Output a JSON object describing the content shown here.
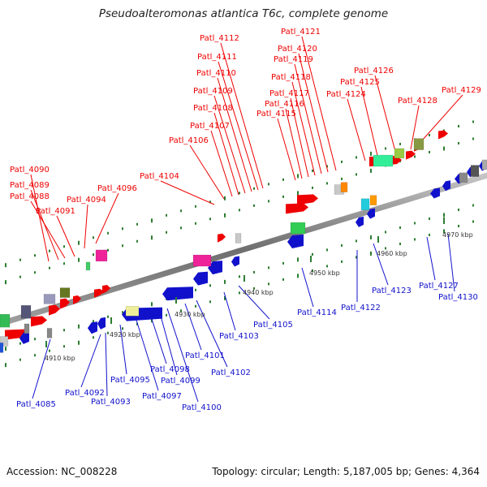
{
  "header": {
    "title": "Pseudoalteromonas atlantica T6c, complete genome"
  },
  "footer": {
    "accession": "Accession: NC_008228",
    "stats": "Topology: circular; Length: 5,187,005 bp; Genes: 4,364"
  },
  "colors": {
    "forward_gene": "#ee0000",
    "reverse_gene": "#1111cc",
    "backbone": "#8a8a8a"
  },
  "coordinates": [
    "4910 kbp",
    "4920 kbp",
    "4930 kbp",
    "4940 kbp",
    "4950 kbp",
    "4960 kbp",
    "4970 kbp"
  ],
  "forward_labels": [
    "Patl_4090",
    "Patl_4089",
    "Patl_4088",
    "Patl_4091",
    "Patl_4094",
    "Patl_4096",
    "Patl_4104",
    "Patl_4106",
    "Patl_4107",
    "Patl_4108",
    "Patl_4109",
    "Patl_4110",
    "Patl_4111",
    "Patl_4112",
    "Patl_4115",
    "Patl_4116",
    "Patl_4117",
    "Patl_4118",
    "Patl_4119",
    "Patl_4120",
    "Patl_4121",
    "Patl_4124",
    "Patl_4125",
    "Patl_4126",
    "Patl_4128",
    "Patl_4129"
  ],
  "reverse_labels": [
    "Patl_4085",
    "Patl_4092",
    "Patl_4093",
    "Patl_4095",
    "Patl_4097",
    "Patl_4098",
    "Patl_4099",
    "Patl_4100",
    "Patl_4101",
    "Patl_4102",
    "Patl_4103",
    "Patl_4105",
    "Patl_4114",
    "Patl_4122",
    "Patl_4123",
    "Patl_4127",
    "Patl_4130"
  ]
}
